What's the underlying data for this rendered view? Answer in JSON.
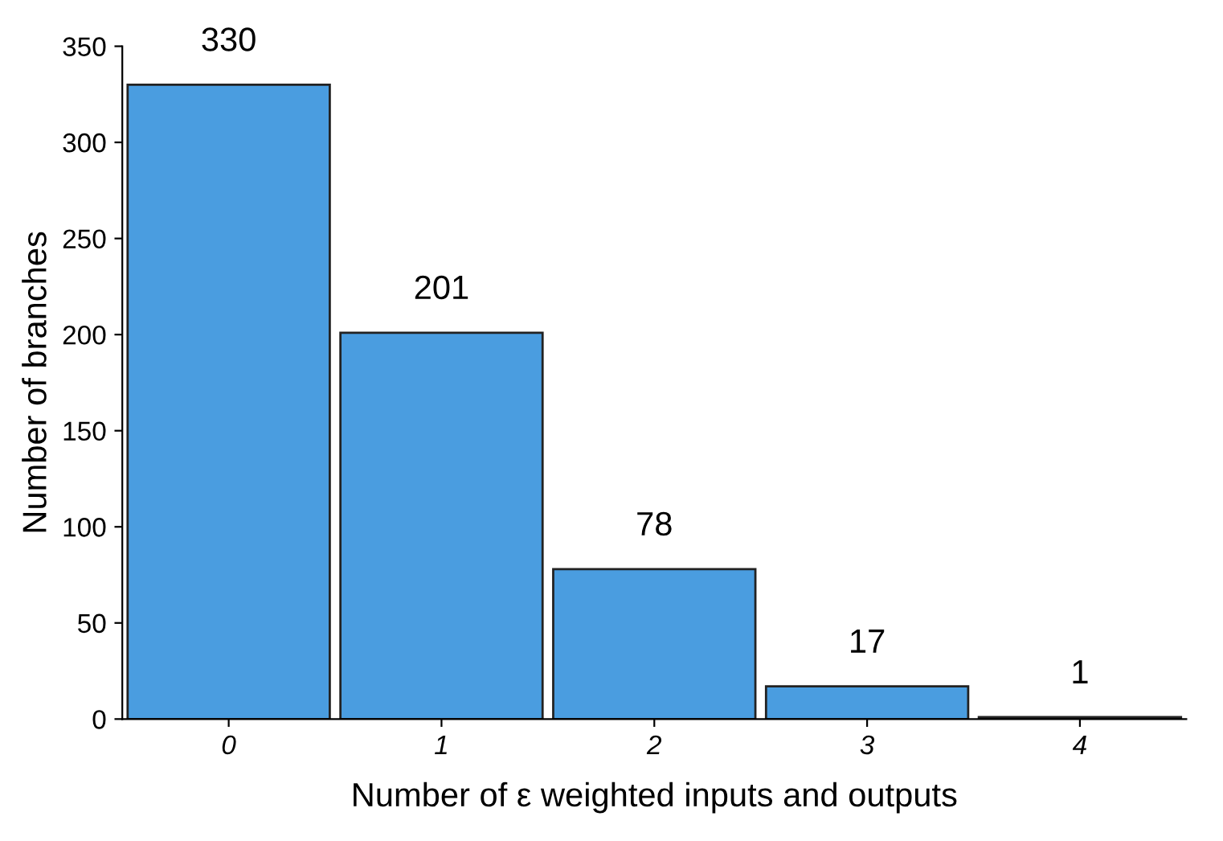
{
  "chart_data": {
    "type": "bar",
    "xlabel": "Number of ε weighted inputs and outputs",
    "ylabel": "Number of branches",
    "categories": [
      "0",
      "1",
      "2",
      "3",
      "4"
    ],
    "values": [
      330,
      201,
      78,
      17,
      1
    ],
    "color": "#4a9de0",
    "ylim": [
      0,
      350
    ],
    "yticks": [
      0,
      50,
      100,
      150,
      200,
      250,
      300,
      350
    ],
    "grid": false,
    "data_labels": true
  }
}
